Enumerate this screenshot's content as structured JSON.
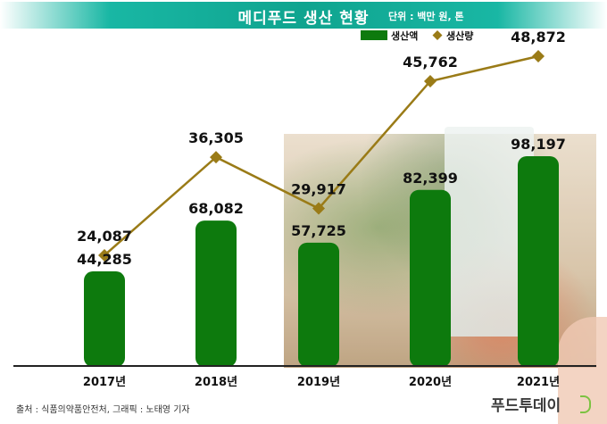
{
  "header": {
    "title": "메디푸드 생산 현황",
    "unit": "단위 : 백만 원, 톤"
  },
  "chart_data": {
    "type": "bar",
    "categories": [
      "2017년",
      "2018년",
      "2019년",
      "2020년",
      "2021년"
    ],
    "series": [
      {
        "name": "생산액",
        "kind": "bar",
        "color": "#0d7a0d",
        "values": [
          44285,
          68082,
          57725,
          82399,
          98197
        ],
        "labels": [
          "44,285",
          "68,082",
          "57,725",
          "82,399",
          "98,197"
        ]
      },
      {
        "name": "생산량",
        "kind": "line",
        "color": "#9a7b17",
        "values": [
          24087,
          36305,
          29917,
          45762,
          48872
        ],
        "labels": [
          "24,087",
          "36,305",
          "29,917",
          "45,762",
          "48,872"
        ]
      }
    ],
    "legend_position": "top-right",
    "grid": false
  },
  "footer": {
    "source": "출처 : 식품의약품안전처, 그래픽 : 노태영 기자",
    "brand": "푸드투데이"
  },
  "colors": {
    "title_band": "#0fa48f",
    "bar": "#0d7a0d",
    "line": "#9a7b17"
  }
}
